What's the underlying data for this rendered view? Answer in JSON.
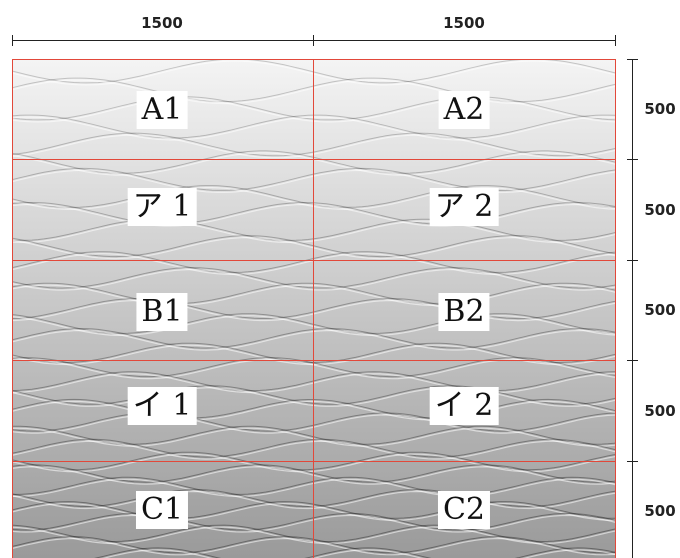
{
  "dimensions": {
    "top": [
      "1500",
      "1500"
    ],
    "right": [
      "500",
      "500",
      "500",
      "500",
      "500"
    ]
  },
  "panels": [
    [
      "A1",
      "A2"
    ],
    [
      "ア 1",
      "ア 2"
    ],
    [
      "B1",
      "B2"
    ],
    [
      "イ 1",
      "イ 2"
    ],
    [
      "C1",
      "C2"
    ]
  ],
  "colors": {
    "grid_line": "#e2483a",
    "dimension_line": "#222222",
    "label_background": "#ffffff"
  }
}
